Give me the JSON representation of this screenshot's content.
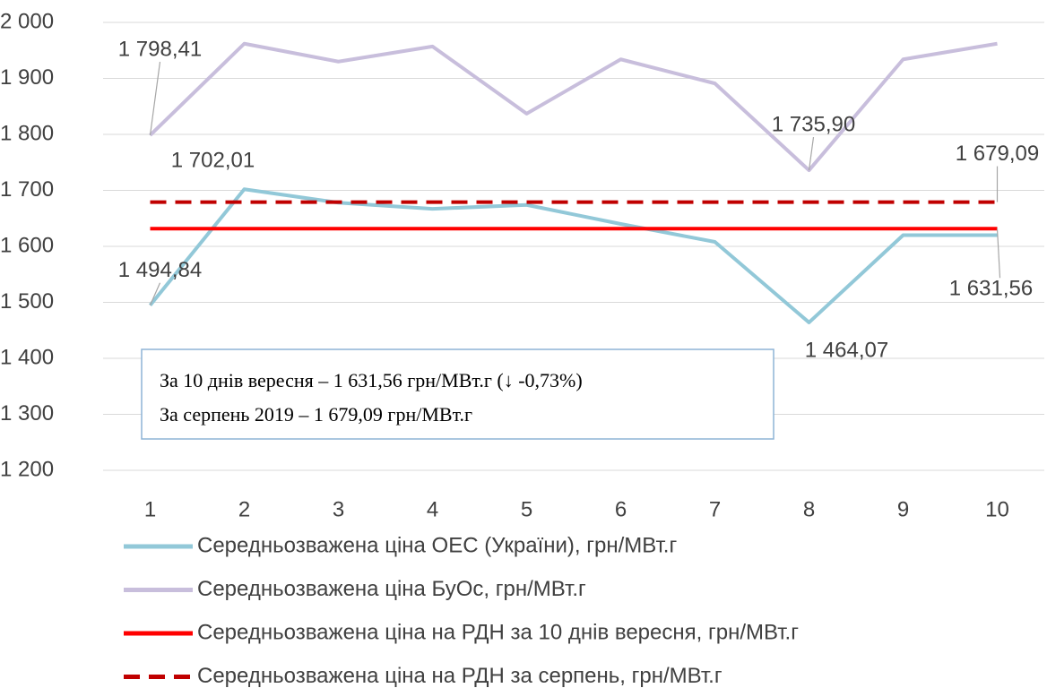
{
  "chart_data": {
    "type": "line",
    "categories": [
      "1",
      "2",
      "3",
      "4",
      "5",
      "6",
      "7",
      "8",
      "9",
      "10"
    ],
    "series": [
      {
        "name": "Середньозважена ціна ОЕС (України), грн/МВт.г",
        "color": "#92c8d8",
        "values": [
          1494.84,
          1702.01,
          1678,
          1667,
          1674,
          1640,
          1608,
          1464.07,
          1620,
          1620
        ],
        "value_labels": [
          "1 494,84",
          "1 702,01",
          null,
          null,
          null,
          null,
          null,
          "1 464,07",
          null,
          null
        ]
      },
      {
        "name": "Середньозважена ціна БуОс, грн/МВт.г",
        "color": "#c8bedc",
        "values": [
          1798.41,
          1962,
          1930,
          1957,
          1837,
          1934,
          1891,
          1735.9,
          1934,
          1962
        ],
        "value_labels": [
          "1 798,41",
          null,
          null,
          null,
          null,
          null,
          null,
          "1 735,90",
          null,
          null
        ]
      },
      {
        "name": "Середньозважена ціна на РДН за 10 днів вересня, грн/МВт.г",
        "color": "#ff0000",
        "dash": false,
        "values": [
          1631.56,
          1631.56,
          1631.56,
          1631.56,
          1631.56,
          1631.56,
          1631.56,
          1631.56,
          1631.56,
          1631.56
        ],
        "value_labels": [
          null,
          null,
          null,
          null,
          null,
          null,
          null,
          null,
          null,
          "1 631,56"
        ]
      },
      {
        "name": "Середньозважена ціна на РДН за серпень, грн/МВт.г",
        "color": "#c00000",
        "dash": true,
        "values": [
          1679.09,
          1679.09,
          1679.09,
          1679.09,
          1679.09,
          1679.09,
          1679.09,
          1679.09,
          1679.09,
          1679.09
        ],
        "value_labels": [
          null,
          null,
          null,
          null,
          null,
          null,
          null,
          null,
          null,
          "1 679,09"
        ]
      }
    ],
    "ylim": [
      1200,
      2000
    ],
    "yticks": [
      {
        "value": 1200,
        "label": "1 200"
      },
      {
        "value": 1300,
        "label": "1 300"
      },
      {
        "value": 1400,
        "label": "1 400"
      },
      {
        "value": 1500,
        "label": "1 500"
      },
      {
        "value": 1600,
        "label": "1 600"
      },
      {
        "value": 1700,
        "label": "1 700"
      },
      {
        "value": 1800,
        "label": "1 800"
      },
      {
        "value": 1900,
        "label": "1 900"
      },
      {
        "value": 2000,
        "label": "2 000"
      }
    ],
    "grid": true,
    "annotations": [
      "За 10 днів вересня – 1 631,56 грн/МВт.г (↓ -0,73%)",
      "За серпень 2019 – 1 679,09 грн/МВт.г"
    ]
  }
}
